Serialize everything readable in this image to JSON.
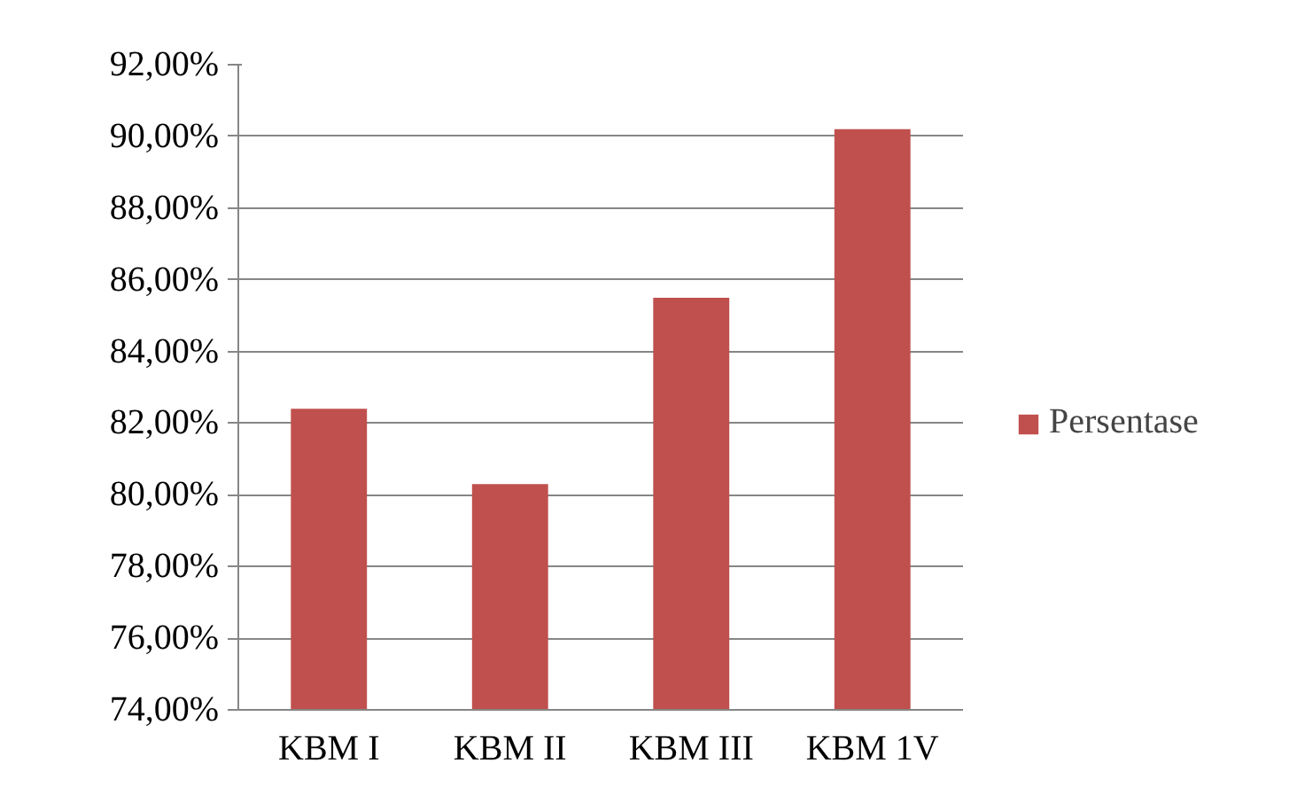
{
  "chart_data": {
    "type": "bar",
    "categories": [
      "KBM I",
      "KBM II",
      "KBM III",
      "KBM 1V"
    ],
    "series": [
      {
        "name": "Persentase",
        "color": "#c0504d",
        "values": [
          82.4,
          80.3,
          85.5,
          90.2
        ]
      }
    ],
    "ylim": [
      74,
      92
    ],
    "yticks": [
      {
        "value": 74,
        "label": "74,00%"
      },
      {
        "value": 76,
        "label": "76,00%"
      },
      {
        "value": 78,
        "label": "78,00%"
      },
      {
        "value": 80,
        "label": "80,00%"
      },
      {
        "value": 82,
        "label": "82,00%"
      },
      {
        "value": 84,
        "label": "84,00%"
      },
      {
        "value": 86,
        "label": "86,00%"
      },
      {
        "value": 88,
        "label": "88,00%"
      },
      {
        "value": 90,
        "label": "90,00%"
      },
      {
        "value": 92,
        "label": "92,00%"
      }
    ],
    "grid": "y",
    "legend": "right"
  }
}
